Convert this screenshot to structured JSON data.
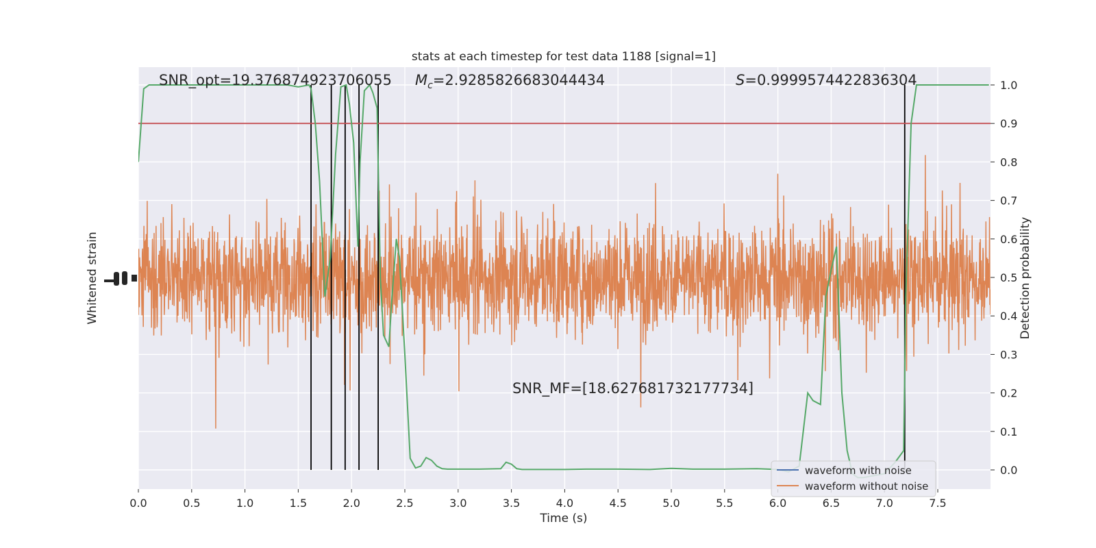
{
  "chart_data": {
    "type": "line",
    "title": "stats at each timestep for test data 1188 [signal=1]",
    "xlabel": "Time (s)",
    "ylabel_left": "Whitened strain",
    "ylabel_right": "Detection probability",
    "xlim": [
      0,
      8
    ],
    "ylim_right": [
      -0.05,
      1.05
    ],
    "x_ticks": [
      0.0,
      0.5,
      1.0,
      1.5,
      2.0,
      2.5,
      3.0,
      3.5,
      4.0,
      4.5,
      5.0,
      5.5,
      6.0,
      6.5,
      7.0,
      7.5
    ],
    "x_tick_labels": [
      "0.0",
      "0.5",
      "1.0",
      "1.5",
      "2.0",
      "2.5",
      "3.0",
      "3.5",
      "4.0",
      "4.5",
      "5.0",
      "5.5",
      "6.0",
      "6.5",
      "7.0",
      "7.5"
    ],
    "y_right_ticks": [
      0.0,
      0.1,
      0.2,
      0.3,
      0.4,
      0.5,
      0.6,
      0.7,
      0.8,
      0.9,
      1.0
    ],
    "y_right_tick_labels": [
      "0.0",
      "0.1",
      "0.2",
      "0.3",
      "0.4",
      "0.5",
      "0.6",
      "0.7",
      "0.8",
      "0.9",
      "1.0"
    ],
    "grid": true,
    "legend_position": "lower-right",
    "annotations": {
      "snr_opt": "SNR_opt=19.376874923706055",
      "mc_symbol": "M",
      "mc_sub": "c",
      "mc_value": "=2.9285826683044434",
      "s_symbol": "S",
      "s_value": "=0.9999574422836304",
      "snr_mf": "SNR_MF=[18.627681732177734]"
    },
    "series": [
      {
        "name": "waveform with noise",
        "color": "#4c72b0"
      },
      {
        "name": "waveform without noise",
        "color": "#dd8452"
      },
      {
        "color": "#55a868",
        "x": [
          0.0,
          0.05,
          0.1,
          0.15,
          0.2,
          0.4,
          0.6,
          0.8,
          1.0,
          1.2,
          1.4,
          1.5,
          1.6,
          1.62,
          1.66,
          1.7,
          1.75,
          1.8,
          1.85,
          1.9,
          1.95,
          1.98,
          2.02,
          2.06,
          2.08,
          2.12,
          2.17,
          2.2,
          2.24,
          2.27,
          2.3,
          2.35,
          2.38,
          2.42,
          2.45,
          2.5,
          2.55,
          2.6,
          2.65,
          2.7,
          2.75,
          2.8,
          2.85,
          2.9,
          3.0,
          3.2,
          3.4,
          3.45,
          3.5,
          3.55,
          3.6,
          3.7,
          3.8,
          4.0,
          4.2,
          4.5,
          4.8,
          5.0,
          5.2,
          5.5,
          5.8,
          6.0,
          6.1,
          6.2,
          6.28,
          6.33,
          6.4,
          6.45,
          6.5,
          6.55,
          6.6,
          6.65,
          6.7,
          6.75,
          6.8,
          7.0,
          7.1,
          7.18,
          7.2,
          7.25,
          7.3,
          7.35,
          7.4,
          7.6,
          7.8,
          7.98
        ],
        "y": [
          0.8,
          0.99,
          1.0,
          1.0,
          1.0,
          1.0,
          1.0,
          1.0,
          1.0,
          1.0,
          1.0,
          0.995,
          1.0,
          0.99,
          0.9,
          0.75,
          0.45,
          0.55,
          0.82,
          0.995,
          1.0,
          0.95,
          0.85,
          0.58,
          0.8,
          0.985,
          1.0,
          0.98,
          0.94,
          0.5,
          0.35,
          0.32,
          0.45,
          0.6,
          0.55,
          0.3,
          0.03,
          0.005,
          0.01,
          0.032,
          0.025,
          0.01,
          0.003,
          0.002,
          0.002,
          0.002,
          0.003,
          0.02,
          0.015,
          0.003,
          0.001,
          0.001,
          0.001,
          0.001,
          0.002,
          0.002,
          0.001,
          0.004,
          0.002,
          0.002,
          0.003,
          0.001,
          -0.005,
          0.01,
          0.2,
          0.18,
          0.17,
          0.45,
          0.52,
          0.58,
          0.2,
          0.05,
          -0.01,
          -0.02,
          -0.02,
          -0.01,
          0.02,
          0.05,
          0.45,
          0.9,
          1.0,
          1.0,
          1.0,
          1.0,
          1.0,
          1.0
        ]
      },
      {
        "color": "#c44e52",
        "y": [
          0.9,
          0.9
        ]
      }
    ],
    "event_times": [
      1.62,
      1.81,
      1.94,
      2.07,
      2.25,
      7.19
    ]
  }
}
